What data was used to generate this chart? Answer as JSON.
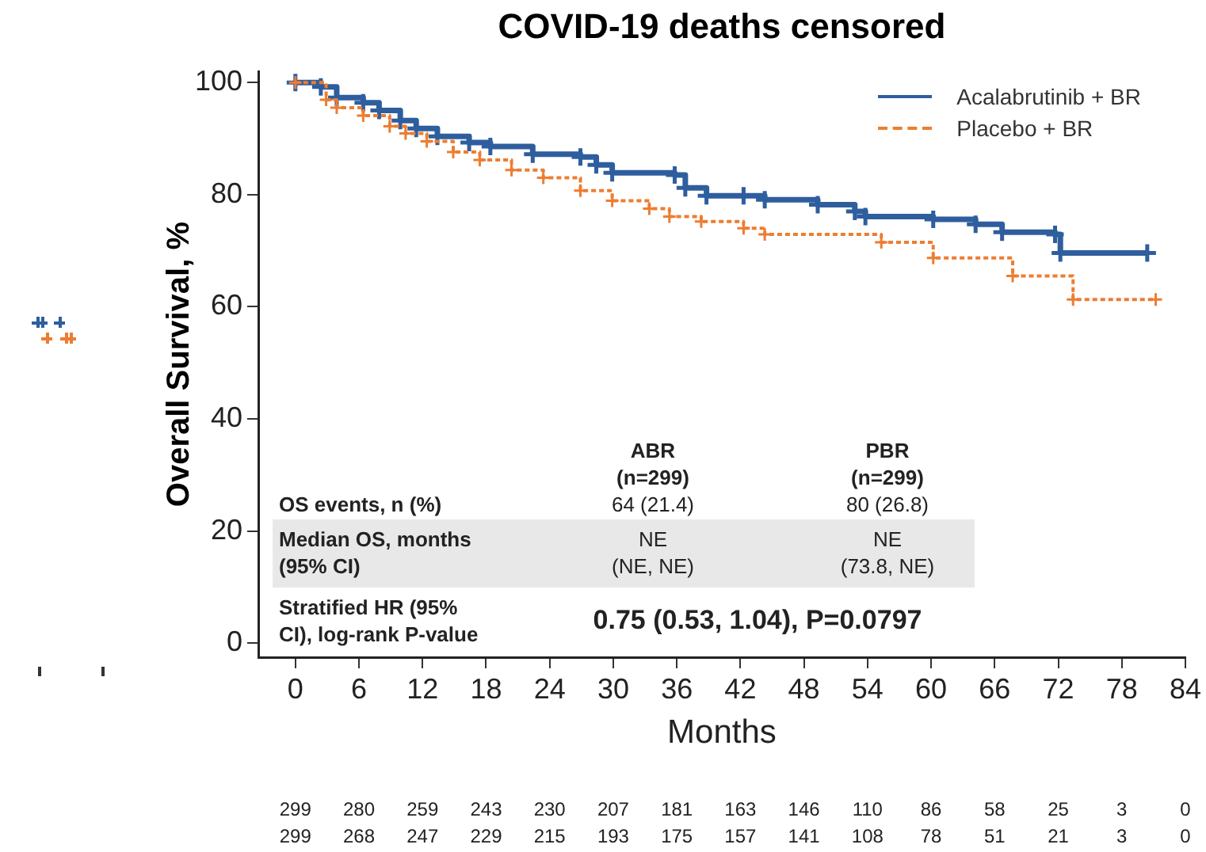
{
  "chart_data": {
    "type": "step",
    "title": "COVID-19 deaths censored",
    "xlabel": "Months",
    "ylabel": "Overall Survival, %",
    "xlim": [
      -3.5,
      84
    ],
    "xticks": [
      0,
      6,
      12,
      18,
      24,
      30,
      36,
      42,
      48,
      54,
      60,
      66,
      72,
      78,
      84
    ],
    "ylim": [
      -2.5,
      102
    ],
    "yticks": [
      0,
      20,
      40,
      60,
      80,
      100
    ],
    "grid": false,
    "legend": "top right",
    "marker": "cross",
    "series": [
      {
        "name": "Acalabrutinib + BR",
        "color": "#2e5e9e",
        "line_style": "solid",
        "x": [
          0,
          2.4,
          3.9,
          6.4,
          7.9,
          9.9,
          11.4,
          13.4,
          16.4,
          18.4,
          22.4,
          26.9,
          28.4,
          29.9,
          35.8,
          36.8,
          38.8,
          42.3,
          44.3,
          49.3,
          52.8,
          53.8,
          60.2,
          64.2,
          66.7,
          71.7,
          72.2,
          80.4
        ],
        "values": [
          100,
          99.2,
          97.3,
          96.4,
          95,
          93.2,
          91.8,
          90.4,
          89.3,
          88.6,
          87.2,
          86.7,
          85.3,
          83.9,
          83.5,
          81.2,
          79.8,
          79.8,
          79.1,
          78.2,
          77,
          76.1,
          75.6,
          74.7,
          73.3,
          72.9,
          69.6,
          69.6
        ]
      },
      {
        "name": "Placebo + BR",
        "color": "#ed7d31",
        "line_style": "dashed",
        "x": [
          0,
          2.9,
          3.9,
          6.4,
          8.9,
          10.4,
          12.4,
          14.9,
          17.4,
          20.4,
          23.4,
          26.9,
          29.9,
          33.4,
          35.3,
          38.3,
          42.3,
          44.3,
          55.3,
          60.2,
          67.7,
          73.4,
          81.2
        ],
        "values": [
          100,
          96.9,
          95.5,
          94.1,
          92.2,
          90.9,
          89.5,
          87.6,
          86.2,
          84.4,
          83,
          80.7,
          78.9,
          77.5,
          76.1,
          75.2,
          74,
          72.9,
          71.5,
          68.7,
          65.5,
          61.3,
          61.3
        ]
      }
    ],
    "annotations": [
      "ABR\n(n=299)",
      "PBR\n(n=299)",
      "OS events, n (%)",
      "64 (21.4)",
      "80 (26.8)",
      "Median OS, months\n(95% CI)",
      "NE\n(NE, NE)",
      "NE\n(73.8, NE)",
      "Stratified HR (95%\nCI), log-rank P-value",
      "0.75 (0.53, 1.04), P=0.0797",
      "299 280 259 243 230 207 181 163 146 110 86 58 25 3 0",
      "299 268 247 229 215 193 175 157 141 108 78 51 21 3 0"
    ]
  }
}
